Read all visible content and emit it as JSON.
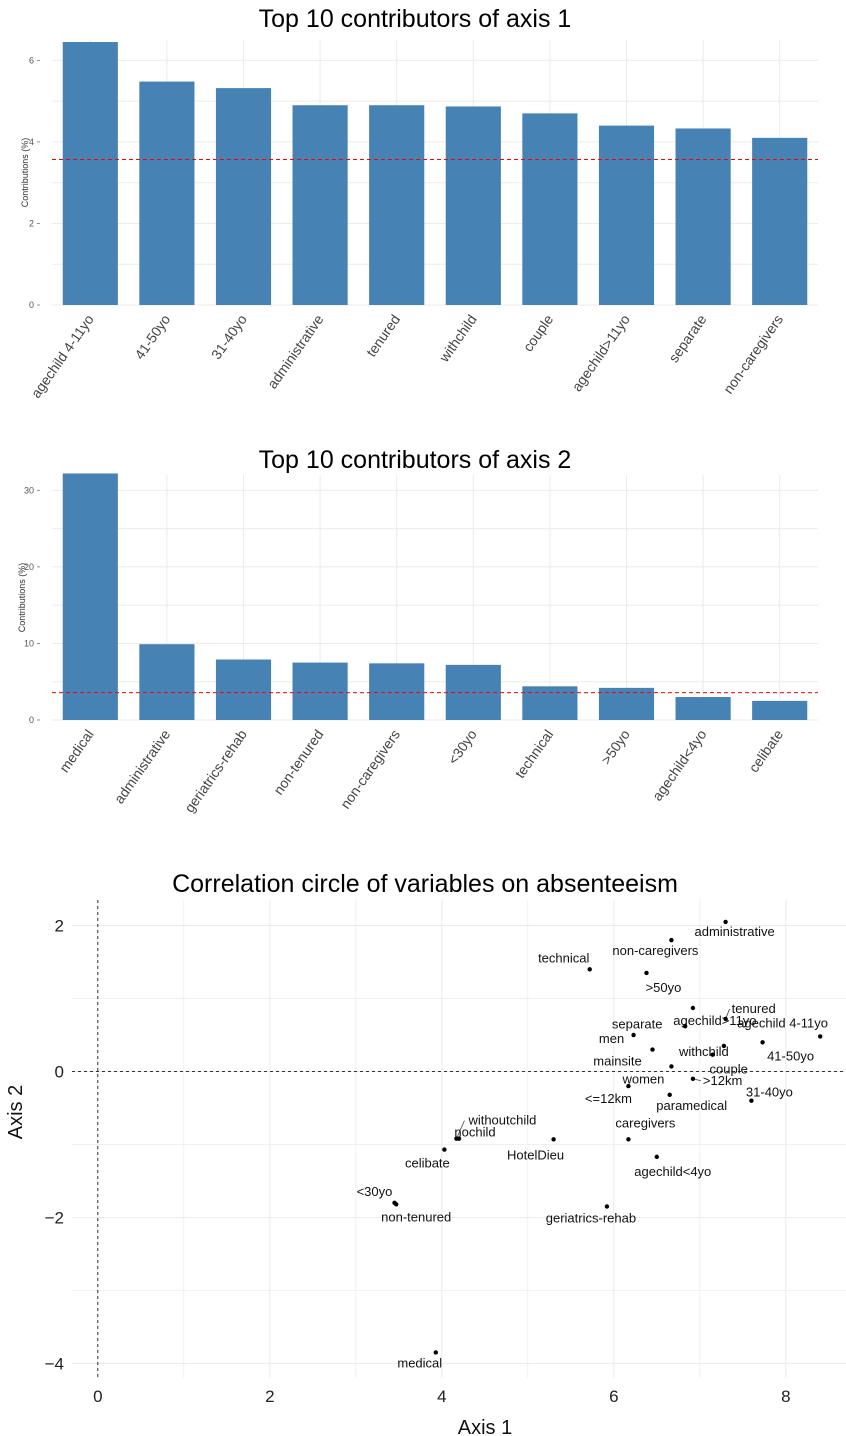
{
  "chart_data": [
    {
      "type": "bar",
      "title": "Top 10 contributors of axis 1",
      "xlabel": "",
      "ylabel": "Contributions (%)",
      "ylim": [
        0,
        6.5
      ],
      "yticks": [
        0,
        2,
        4,
        6
      ],
      "categories": [
        "agechild 4-11yo",
        "41-50yo",
        "31-40yo",
        "administrative",
        "tenured",
        "withchild",
        "couple",
        "agechild>11yo",
        "separate",
        "non-caregivers"
      ],
      "values": [
        6.45,
        5.48,
        5.32,
        4.9,
        4.9,
        4.87,
        4.7,
        4.4,
        4.33,
        4.1
      ],
      "reference_line": 3.57,
      "grid": true,
      "bar_color": "#4682B4",
      "reference_color": "#FF0000"
    },
    {
      "type": "bar",
      "title": "Top 10 contributors of axis 2",
      "xlabel": "",
      "ylabel": "Contributions (%)",
      "ylim": [
        0,
        32
      ],
      "yticks": [
        0,
        10,
        20,
        30
      ],
      "categories": [
        "medical",
        "administrative",
        "geriatrics-rehab",
        "non-tenured",
        "non-caregivers",
        "<30yo",
        "technical",
        ">50yo",
        "agechild<4yo",
        "celibate"
      ],
      "values": [
        32.2,
        9.9,
        7.9,
        7.5,
        7.4,
        7.2,
        4.4,
        4.2,
        3.0,
        2.5
      ],
      "reference_line": 3.57,
      "grid": true,
      "bar_color": "#4682B4",
      "reference_color": "#FF0000"
    },
    {
      "type": "scatter",
      "title": "Correlation circle of variables on absenteeism",
      "xlabel": "Axis 1",
      "ylabel": "Axis 2",
      "xlim": [
        -0.3,
        8.7
      ],
      "ylim": [
        -4.2,
        2.35
      ],
      "xticks": [
        0,
        2,
        4,
        6,
        8
      ],
      "yticks": [
        -4,
        -2,
        0,
        2
      ],
      "reference_lines": {
        "x": 0,
        "y": 0
      },
      "grid": true,
      "points": [
        {
          "label": "administrative",
          "x": 7.3,
          "y": 2.05
        },
        {
          "label": "non-caregivers",
          "x": 6.67,
          "y": 1.8
        },
        {
          "label": "technical",
          "x": 5.72,
          "y": 1.4
        },
        {
          "label": ">50yo",
          "x": 6.38,
          "y": 1.35
        },
        {
          "label": "agechild>11yo",
          "x": 6.92,
          "y": 0.87
        },
        {
          "label": "tenured",
          "x": 7.3,
          "y": 0.72
        },
        {
          "label": "agechild 4-11yo",
          "x": 8.4,
          "y": 0.48
        },
        {
          "label": "separate",
          "x": 6.83,
          "y": 0.62
        },
        {
          "label": "men",
          "x": 6.23,
          "y": 0.5
        },
        {
          "label": "withchild",
          "x": 7.28,
          "y": 0.35
        },
        {
          "label": "41-50yo",
          "x": 7.73,
          "y": 0.4
        },
        {
          "label": "mainsite",
          "x": 6.45,
          "y": 0.3
        },
        {
          "label": "couple",
          "x": 7.15,
          "y": 0.23
        },
        {
          "label": "women",
          "x": 6.67,
          "y": 0.07
        },
        {
          "label": ">12km",
          "x": 6.92,
          "y": -0.1
        },
        {
          "label": "<=12km",
          "x": 6.17,
          "y": -0.2
        },
        {
          "label": "31-40yo",
          "x": 7.6,
          "y": -0.4
        },
        {
          "label": "paramedical",
          "x": 6.65,
          "y": -0.32
        },
        {
          "label": "withoutchild",
          "x": 4.17,
          "y": -0.92
        },
        {
          "label": "nochild",
          "x": 4.2,
          "y": -0.92
        },
        {
          "label": "caregivers",
          "x": 6.17,
          "y": -0.93
        },
        {
          "label": "HotelDieu",
          "x": 5.3,
          "y": -0.93
        },
        {
          "label": "celibate",
          "x": 4.03,
          "y": -1.07
        },
        {
          "label": "agechild<4yo",
          "x": 6.5,
          "y": -1.17
        },
        {
          "label": "<30yo",
          "x": 3.45,
          "y": -1.8
        },
        {
          "label": "non-tenured",
          "x": 3.47,
          "y": -1.82
        },
        {
          "label": "geriatrics-rehab",
          "x": 5.92,
          "y": -1.85
        },
        {
          "label": "medical",
          "x": 3.93,
          "y": -3.85
        }
      ]
    }
  ]
}
